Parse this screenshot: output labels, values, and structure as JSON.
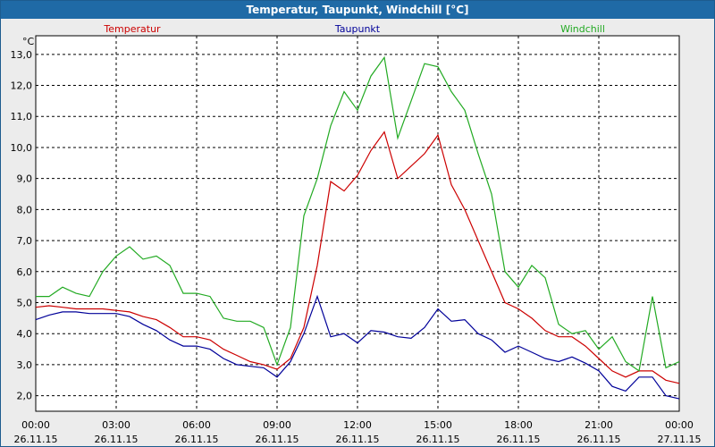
{
  "window": {
    "title": "Temperatur, Taupunkt, Windchill [°C]"
  },
  "colors": {
    "titlebar": "#1f6aa6",
    "temperatur": "#cc0000",
    "taupunkt": "#000099",
    "windchill": "#22aa22",
    "grid": "#000000",
    "plot_bg": "#ffffff"
  },
  "chart_data": {
    "type": "line",
    "title": "Temperatur, Taupunkt, Windchill [°C]",
    "ylabel": "°C",
    "xlabel": "",
    "xlim": [
      0,
      24
    ],
    "ylim": [
      1.5,
      13.6
    ],
    "y_ticks": [
      2.0,
      3.0,
      4.0,
      5.0,
      6.0,
      7.0,
      8.0,
      9.0,
      10.0,
      11.0,
      12.0,
      13.0
    ],
    "y_tick_labels": [
      "2,0",
      "3,0",
      "4,0",
      "5,0",
      "6,0",
      "7,0",
      "8,0",
      "9,0",
      "10,0",
      "11,0",
      "12,0",
      "13,0"
    ],
    "x_ticks": [
      0,
      3,
      6,
      9,
      12,
      15,
      18,
      21,
      24
    ],
    "x_tick_times": [
      "00:00",
      "03:00",
      "06:00",
      "09:00",
      "12:00",
      "15:00",
      "18:00",
      "21:00",
      "00:00"
    ],
    "x_tick_dates": [
      "26.11.15",
      "26.11.15",
      "26.11.15",
      "26.11.15",
      "26.11.15",
      "26.11.15",
      "26.11.15",
      "26.11.15",
      "27.11.15"
    ],
    "grid": true,
    "series": [
      {
        "name": "Temperatur",
        "color": "#cc0000",
        "x": [
          0,
          0.5,
          1,
          1.5,
          2,
          2.5,
          3,
          3.5,
          4,
          4.5,
          5,
          5.5,
          6,
          6.5,
          7,
          7.5,
          8,
          8.5,
          9,
          9.5,
          10,
          10.5,
          11,
          11.5,
          12,
          12.5,
          13,
          13.5,
          14,
          14.5,
          15,
          15.5,
          16,
          16.5,
          17,
          17.5,
          18,
          18.5,
          19,
          19.5,
          20,
          20.5,
          21,
          21.5,
          22,
          22.5,
          23,
          23.5,
          24
        ],
        "values": [
          4.85,
          4.9,
          4.85,
          4.8,
          4.8,
          4.8,
          4.75,
          4.7,
          4.55,
          4.45,
          4.2,
          3.9,
          3.9,
          3.8,
          3.5,
          3.3,
          3.1,
          3.0,
          2.85,
          3.2,
          4.2,
          6.2,
          8.9,
          8.6,
          9.1,
          9.9,
          10.5,
          9.0,
          9.4,
          9.8,
          10.4,
          8.8,
          8.0,
          7.0,
          6.0,
          5.0,
          4.8,
          4.5,
          4.1,
          3.9,
          3.9,
          3.6,
          3.2,
          2.8,
          2.6,
          2.8,
          2.8,
          2.5,
          2.4
        ]
      },
      {
        "name": "Taupunkt",
        "color": "#000099",
        "x": [
          0,
          0.5,
          1,
          1.5,
          2,
          2.5,
          3,
          3.5,
          4,
          4.5,
          5,
          5.5,
          6,
          6.5,
          7,
          7.5,
          8,
          8.5,
          9,
          9.5,
          10,
          10.5,
          11,
          11.5,
          12,
          12.5,
          13,
          13.5,
          14,
          14.5,
          15,
          15.5,
          16,
          16.5,
          17,
          17.5,
          18,
          18.5,
          19,
          19.5,
          20,
          20.5,
          21,
          21.5,
          22,
          22.5,
          23,
          23.5,
          24
        ],
        "values": [
          4.45,
          4.6,
          4.7,
          4.7,
          4.65,
          4.65,
          4.65,
          4.55,
          4.3,
          4.1,
          3.8,
          3.6,
          3.6,
          3.5,
          3.2,
          3.0,
          2.95,
          2.9,
          2.6,
          3.1,
          4.0,
          5.2,
          3.9,
          4.0,
          3.7,
          4.1,
          4.05,
          3.9,
          3.85,
          4.2,
          4.8,
          4.4,
          4.45,
          4.0,
          3.8,
          3.4,
          3.6,
          3.4,
          3.2,
          3.1,
          3.25,
          3.05,
          2.8,
          2.3,
          2.15,
          2.6,
          2.6,
          2.0,
          1.9
        ]
      },
      {
        "name": "Windchill",
        "color": "#22aa22",
        "x": [
          0,
          0.5,
          1,
          1.5,
          2,
          2.5,
          3,
          3.5,
          4,
          4.5,
          5,
          5.5,
          6,
          6.5,
          7,
          7.5,
          8,
          8.5,
          9,
          9.5,
          10,
          10.5,
          11,
          11.5,
          12,
          12.5,
          13,
          13.5,
          14,
          14.5,
          15,
          15.5,
          16,
          16.5,
          17,
          17.5,
          18,
          18.5,
          19,
          19.5,
          20,
          20.5,
          21,
          21.5,
          22,
          22.5,
          23,
          23.5,
          24
        ],
        "values": [
          5.2,
          5.2,
          5.5,
          5.3,
          5.2,
          6.0,
          6.5,
          6.8,
          6.4,
          6.5,
          6.2,
          5.3,
          5.3,
          5.2,
          4.5,
          4.4,
          4.4,
          4.2,
          3.0,
          4.2,
          7.8,
          9.0,
          10.7,
          11.8,
          11.2,
          12.3,
          12.9,
          10.3,
          11.5,
          12.7,
          12.6,
          11.8,
          11.2,
          9.8,
          8.5,
          6.0,
          5.5,
          6.2,
          5.8,
          4.3,
          4.0,
          4.1,
          3.5,
          3.9,
          3.1,
          2.8,
          5.2,
          2.9,
          3.1
        ]
      }
    ]
  }
}
